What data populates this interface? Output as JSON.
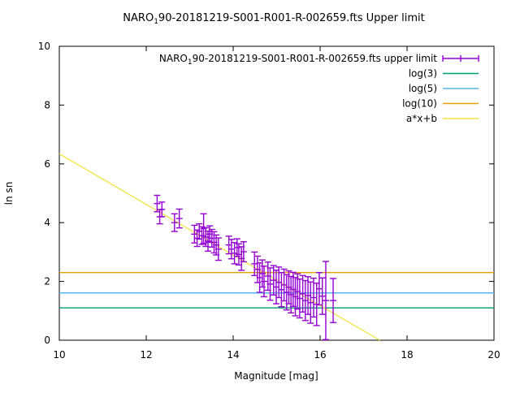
{
  "chart_data": {
    "type": "scatter",
    "title": {
      "prefix": "NARO",
      "subscript": "1",
      "suffix": "90-20181219-S001-R001-R-002659.fts Upper limit"
    },
    "xlabel": "Magnitude [mag]",
    "ylabel": "ln sn",
    "xlim": [
      10,
      20
    ],
    "ylim": [
      0,
      10
    ],
    "xticks": [
      10,
      12,
      14,
      16,
      18,
      20
    ],
    "yticks": [
      0,
      2,
      4,
      6,
      8,
      10
    ],
    "grid": false,
    "legend_position": "top-right-inside",
    "axis_color": "#000000",
    "series": [
      {
        "name_prefix": "NARO",
        "name_subscript": "1",
        "name_suffix": "90-20181219-S001-R001-R-002659.fts upper limit",
        "style": "errorbars",
        "color": "#9400d3",
        "points": [
          [
            12.25,
            4.65,
            0.28
          ],
          [
            12.31,
            4.2,
            0.24
          ],
          [
            12.36,
            4.45,
            0.25
          ],
          [
            12.65,
            4.0,
            0.3
          ],
          [
            12.76,
            4.14,
            0.32
          ],
          [
            13.11,
            3.61,
            0.3
          ],
          [
            13.17,
            3.47,
            0.28
          ],
          [
            13.22,
            3.7,
            0.26
          ],
          [
            13.28,
            3.56,
            0.3
          ],
          [
            13.32,
            3.8,
            0.5
          ],
          [
            13.37,
            3.51,
            0.32
          ],
          [
            13.42,
            3.37,
            0.34
          ],
          [
            13.46,
            3.61,
            0.28
          ],
          [
            13.51,
            3.47,
            0.3
          ],
          [
            13.56,
            3.33,
            0.36
          ],
          [
            13.61,
            3.24,
            0.34
          ],
          [
            13.66,
            3.1,
            0.38
          ],
          [
            13.9,
            3.24,
            0.3
          ],
          [
            13.96,
            3.1,
            0.33
          ],
          [
            14.03,
            2.96,
            0.36
          ],
          [
            14.09,
            3.15,
            0.3
          ],
          [
            14.13,
            2.92,
            0.36
          ],
          [
            14.19,
            2.78,
            0.4
          ],
          [
            14.24,
            3.01,
            0.34
          ],
          [
            14.49,
            2.6,
            0.4
          ],
          [
            14.56,
            2.41,
            0.45
          ],
          [
            14.61,
            2.13,
            0.5
          ],
          [
            14.67,
            2.27,
            0.46
          ],
          [
            14.71,
            2.0,
            0.52
          ],
          [
            14.8,
            2.18,
            0.48
          ],
          [
            14.85,
            1.91,
            0.55
          ],
          [
            14.93,
            2.04,
            0.5
          ],
          [
            14.99,
            1.81,
            0.57
          ],
          [
            15.05,
            1.97,
            0.52
          ],
          [
            15.11,
            1.72,
            0.58
          ],
          [
            15.17,
            1.88,
            0.54
          ],
          [
            15.23,
            1.63,
            0.6
          ],
          [
            15.28,
            1.8,
            0.56
          ],
          [
            15.33,
            1.55,
            0.62
          ],
          [
            15.38,
            1.73,
            0.58
          ],
          [
            15.43,
            1.48,
            0.65
          ],
          [
            15.48,
            1.66,
            0.6
          ],
          [
            15.53,
            1.42,
            0.66
          ],
          [
            15.6,
            1.58,
            0.62
          ],
          [
            15.66,
            1.35,
            0.68
          ],
          [
            15.72,
            1.52,
            0.64
          ],
          [
            15.78,
            1.28,
            0.7
          ],
          [
            15.85,
            1.45,
            0.66
          ],
          [
            15.92,
            1.22,
            0.72
          ],
          [
            15.98,
            1.75,
            0.55
          ],
          [
            16.05,
            1.5,
            0.62
          ],
          [
            16.13,
            1.35,
            1.33
          ],
          [
            16.3,
            1.35,
            0.75
          ]
        ]
      }
    ],
    "constant_lines": [
      {
        "label": "log(3)",
        "value": 1.0986,
        "color": "#009e73"
      },
      {
        "label": "log(5)",
        "value": 1.6094,
        "color": "#56b4e9"
      },
      {
        "label": "log(10)",
        "value": 2.3026,
        "color": "#e69f00"
      }
    ],
    "fit_line": {
      "label": "a*x+b",
      "a": -0.86,
      "b": 14.94,
      "color": "#f0e442"
    }
  }
}
